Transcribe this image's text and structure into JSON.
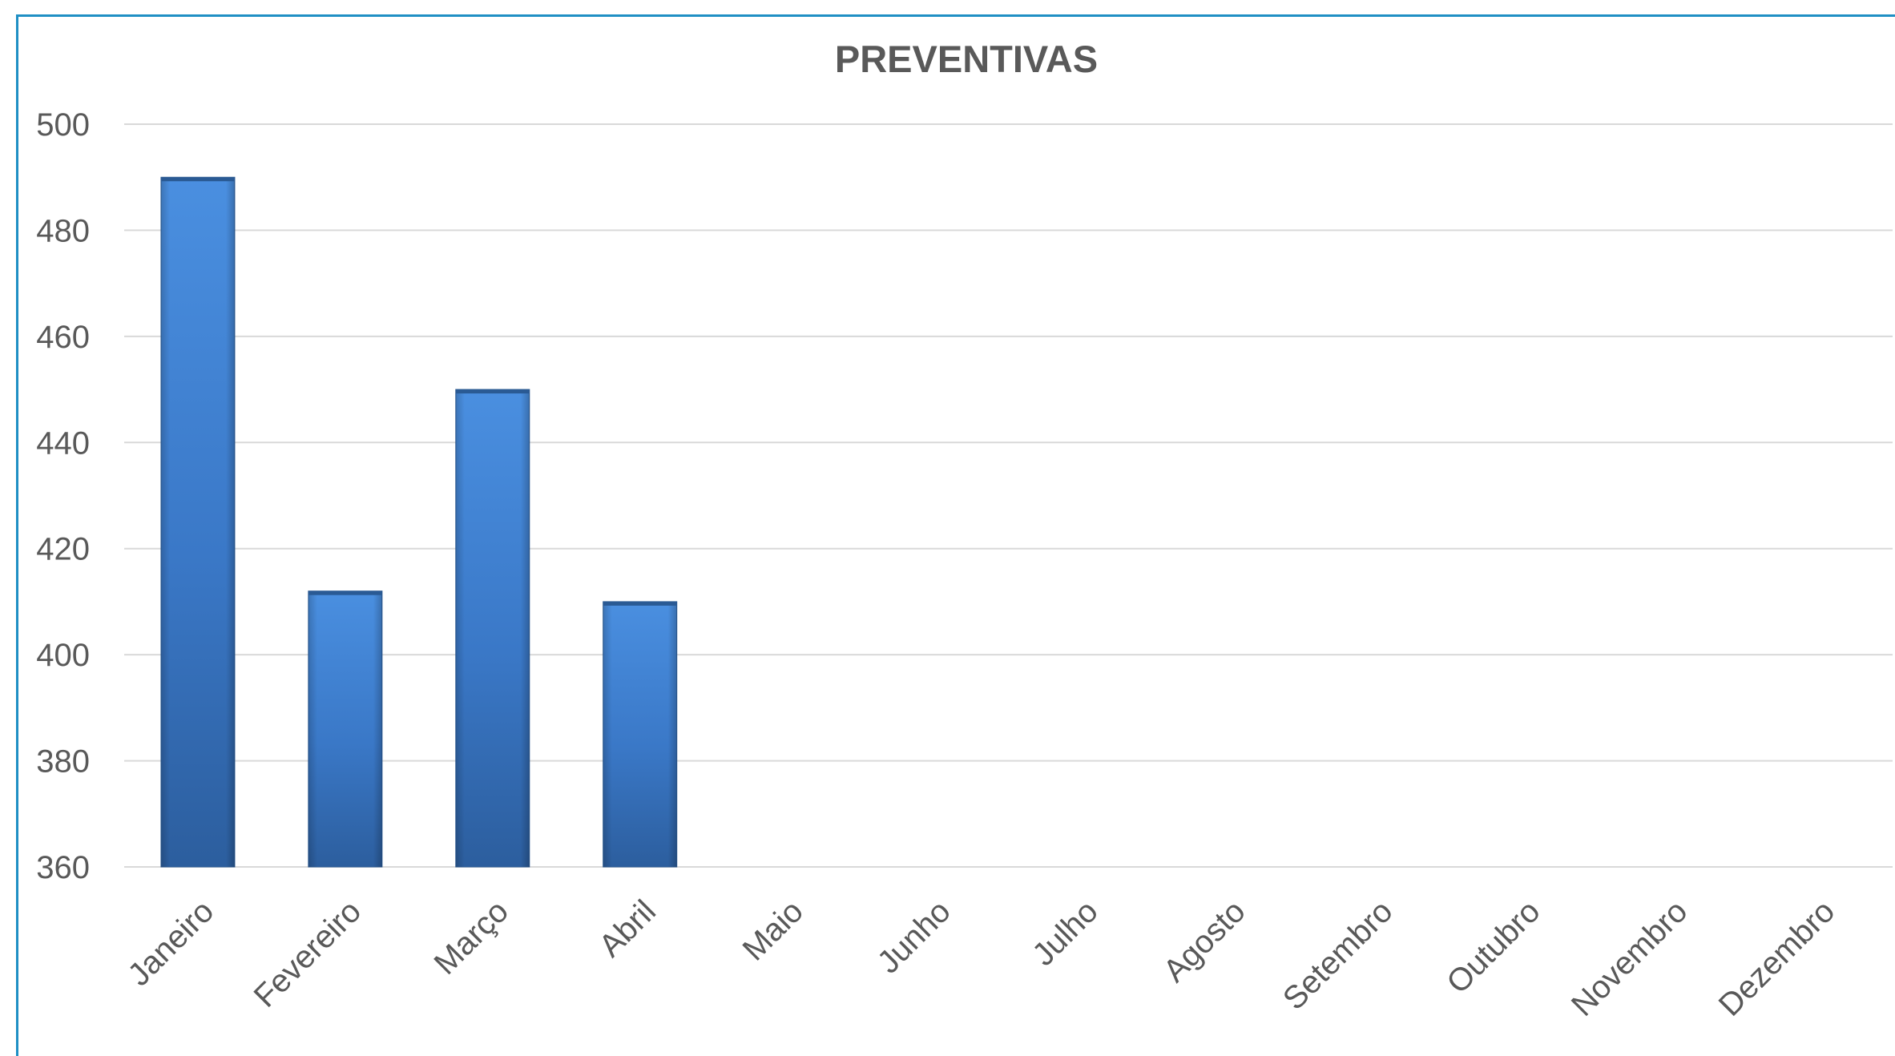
{
  "chart_data": {
    "type": "bar",
    "title": "PREVENTIVAS",
    "xlabel": "",
    "ylabel": "",
    "categories": [
      "Janeiro",
      "Fevereiro",
      "Março",
      "Abril",
      "Maio",
      "Junho",
      "Julho",
      "Agosto",
      "Setembro",
      "Outubro",
      "Novembro",
      "Dezembro"
    ],
    "values": [
      490,
      412,
      450,
      410,
      null,
      null,
      null,
      null,
      null,
      null,
      null,
      null
    ],
    "ylim": [
      360,
      500
    ],
    "yticks": [
      500,
      480,
      460,
      440,
      420,
      400,
      380,
      360
    ],
    "grid": true,
    "legend": "none",
    "colors": {
      "bar_light": "#4a8fe0",
      "bar_dark": "#2c5e9e",
      "border": "#1f8fc4"
    }
  }
}
